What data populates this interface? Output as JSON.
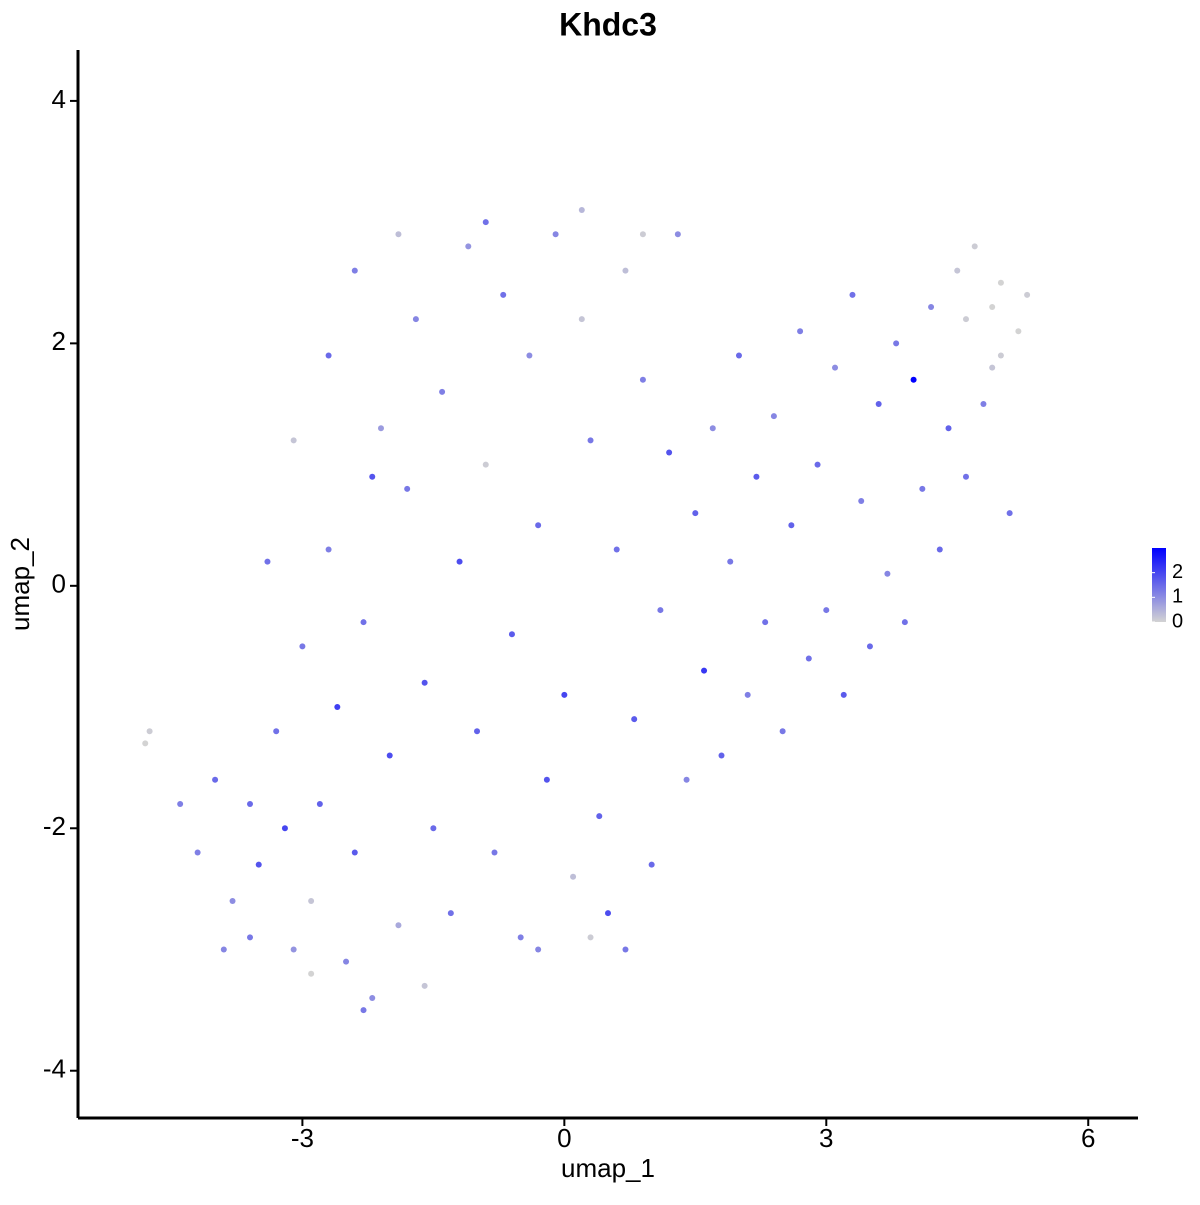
{
  "chart_data": {
    "type": "scatter",
    "title": "Khdc3",
    "xlabel": "umap_1",
    "ylabel": "umap_2",
    "xlim": [
      -5.57,
      6.57
    ],
    "xticks": [
      -3,
      0,
      3,
      6
    ],
    "ylim": [
      -4.39,
      4.42
    ],
    "yticks": [
      -4,
      -2,
      0,
      2,
      4
    ],
    "color_low": "#d3d3d3",
    "color_high": "#0000ff",
    "colorlim": [
      0,
      3
    ],
    "colorticks": [
      0,
      1,
      2
    ],
    "x": [
      -4.2,
      -4.0,
      -3.8,
      -3.6,
      -3.5,
      -3.3,
      -3.2,
      -3.1,
      -3.0,
      -2.9,
      -2.8,
      -2.7,
      -2.6,
      -2.5,
      -2.4,
      -2.3,
      -2.2,
      -2.1,
      -2.0,
      -1.9,
      -1.8,
      -1.7,
      -1.6,
      -1.5,
      -1.4,
      -1.3,
      -1.2,
      -1.1,
      -1.0,
      -0.9,
      -0.8,
      -0.7,
      -0.6,
      -0.5,
      -0.4,
      -0.3,
      -0.2,
      -0.1,
      0.0,
      0.1,
      0.2,
      0.3,
      0.4,
      0.5,
      0.6,
      0.7,
      0.8,
      0.9,
      1.0,
      1.1,
      1.2,
      1.3,
      1.4,
      1.5,
      1.6,
      1.7,
      1.8,
      1.9,
      2.0,
      2.1,
      2.2,
      2.3,
      2.4,
      2.5,
      2.6,
      2.7,
      2.8,
      2.9,
      3.0,
      3.1,
      3.2,
      3.3,
      3.4,
      3.5,
      3.6,
      3.7,
      3.8,
      3.9,
      4.0,
      4.1,
      4.2,
      4.3,
      4.4,
      4.5,
      4.6,
      4.7,
      4.8,
      4.9,
      5.0,
      5.1,
      5.2,
      5.3,
      4.9,
      5.0,
      4.6,
      -4.8,
      -4.75,
      -4.4,
      -3.9,
      -2.9,
      -2.3,
      -3.4,
      -3.1,
      -2.7,
      -2.4,
      -1.9,
      -0.9,
      0.2,
      0.9,
      -2.2,
      -3.6,
      -1.6,
      -0.3,
      0.3,
      0.7
    ],
    "y": [
      -2.2,
      -1.6,
      -2.6,
      -2.9,
      -2.3,
      -1.2,
      -2.0,
      -3.0,
      -0.5,
      -2.6,
      -1.8,
      0.3,
      -1.0,
      -3.1,
      -2.2,
      -0.3,
      -3.4,
      1.3,
      -1.4,
      -2.8,
      0.8,
      2.2,
      -0.8,
      -2.0,
      1.6,
      -2.7,
      0.2,
      2.8,
      -1.2,
      1.0,
      -2.2,
      2.4,
      -0.4,
      -2.9,
      1.9,
      0.5,
      -1.6,
      2.9,
      -0.9,
      -2.4,
      2.2,
      1.2,
      -1.9,
      -2.7,
      0.3,
      2.6,
      -1.1,
      1.7,
      -2.3,
      -0.2,
      1.1,
      2.9,
      -1.6,
      0.6,
      -0.7,
      1.3,
      -1.4,
      0.2,
      1.9,
      -0.9,
      0.9,
      -0.3,
      1.4,
      -1.2,
      0.5,
      2.1,
      -0.6,
      1.0,
      -0.2,
      1.8,
      -0.9,
      2.4,
      0.7,
      -0.5,
      1.5,
      0.1,
      2.0,
      -0.3,
      1.7,
      0.8,
      2.3,
      0.3,
      1.3,
      2.6,
      0.9,
      2.8,
      1.5,
      2.3,
      1.9,
      0.6,
      2.1,
      2.4,
      1.8,
      2.5,
      2.2,
      -1.3,
      -1.2,
      -1.8,
      -3.0,
      -3.2,
      -3.5,
      0.2,
      1.2,
      1.9,
      2.6,
      2.9,
      3.0,
      3.1,
      2.9,
      0.9,
      -1.8,
      -3.3,
      -3.0,
      -2.9,
      -3.0
    ],
    "values": [
      1.2,
      1.5,
      1.0,
      1.3,
      1.8,
      1.4,
      2.0,
      0.9,
      1.3,
      0.2,
      1.6,
      1.2,
      2.1,
      1.1,
      1.7,
      1.4,
      1.0,
      0.8,
      1.9,
      0.6,
      1.3,
      1.1,
      1.8,
      1.5,
      1.2,
      1.4,
      1.9,
      0.9,
      1.6,
      0.1,
      1.3,
      1.4,
      1.7,
      1.2,
      1.0,
      1.5,
      1.8,
      1.1,
      2.0,
      0.3,
      0.2,
      1.3,
      1.6,
      1.9,
      1.4,
      0.3,
      1.7,
      1.2,
      1.5,
      1.3,
      1.8,
      1.0,
      1.1,
      1.6,
      2.2,
      1.0,
      1.6,
      1.3,
      1.5,
      1.2,
      1.7,
      1.4,
      1.1,
      1.3,
      1.6,
      1.2,
      1.4,
      1.5,
      1.3,
      1.0,
      1.7,
      1.4,
      1.2,
      1.5,
      1.6,
      1.1,
      1.3,
      1.4,
      3.0,
      1.3,
      1.1,
      1.5,
      1.6,
      0.2,
      1.4,
      0.1,
      1.2,
      0.0,
      0.1,
      1.4,
      0.0,
      0.1,
      0.2,
      0.0,
      0.1,
      0.0,
      0.1,
      1.2,
      1.1,
      0.0,
      1.3,
      1.4,
      0.2,
      1.5,
      1.2,
      0.3,
      1.4,
      0.4,
      0.1,
      1.8,
      1.5,
      0.2,
      1.1,
      0.1,
      1.3
    ]
  }
}
